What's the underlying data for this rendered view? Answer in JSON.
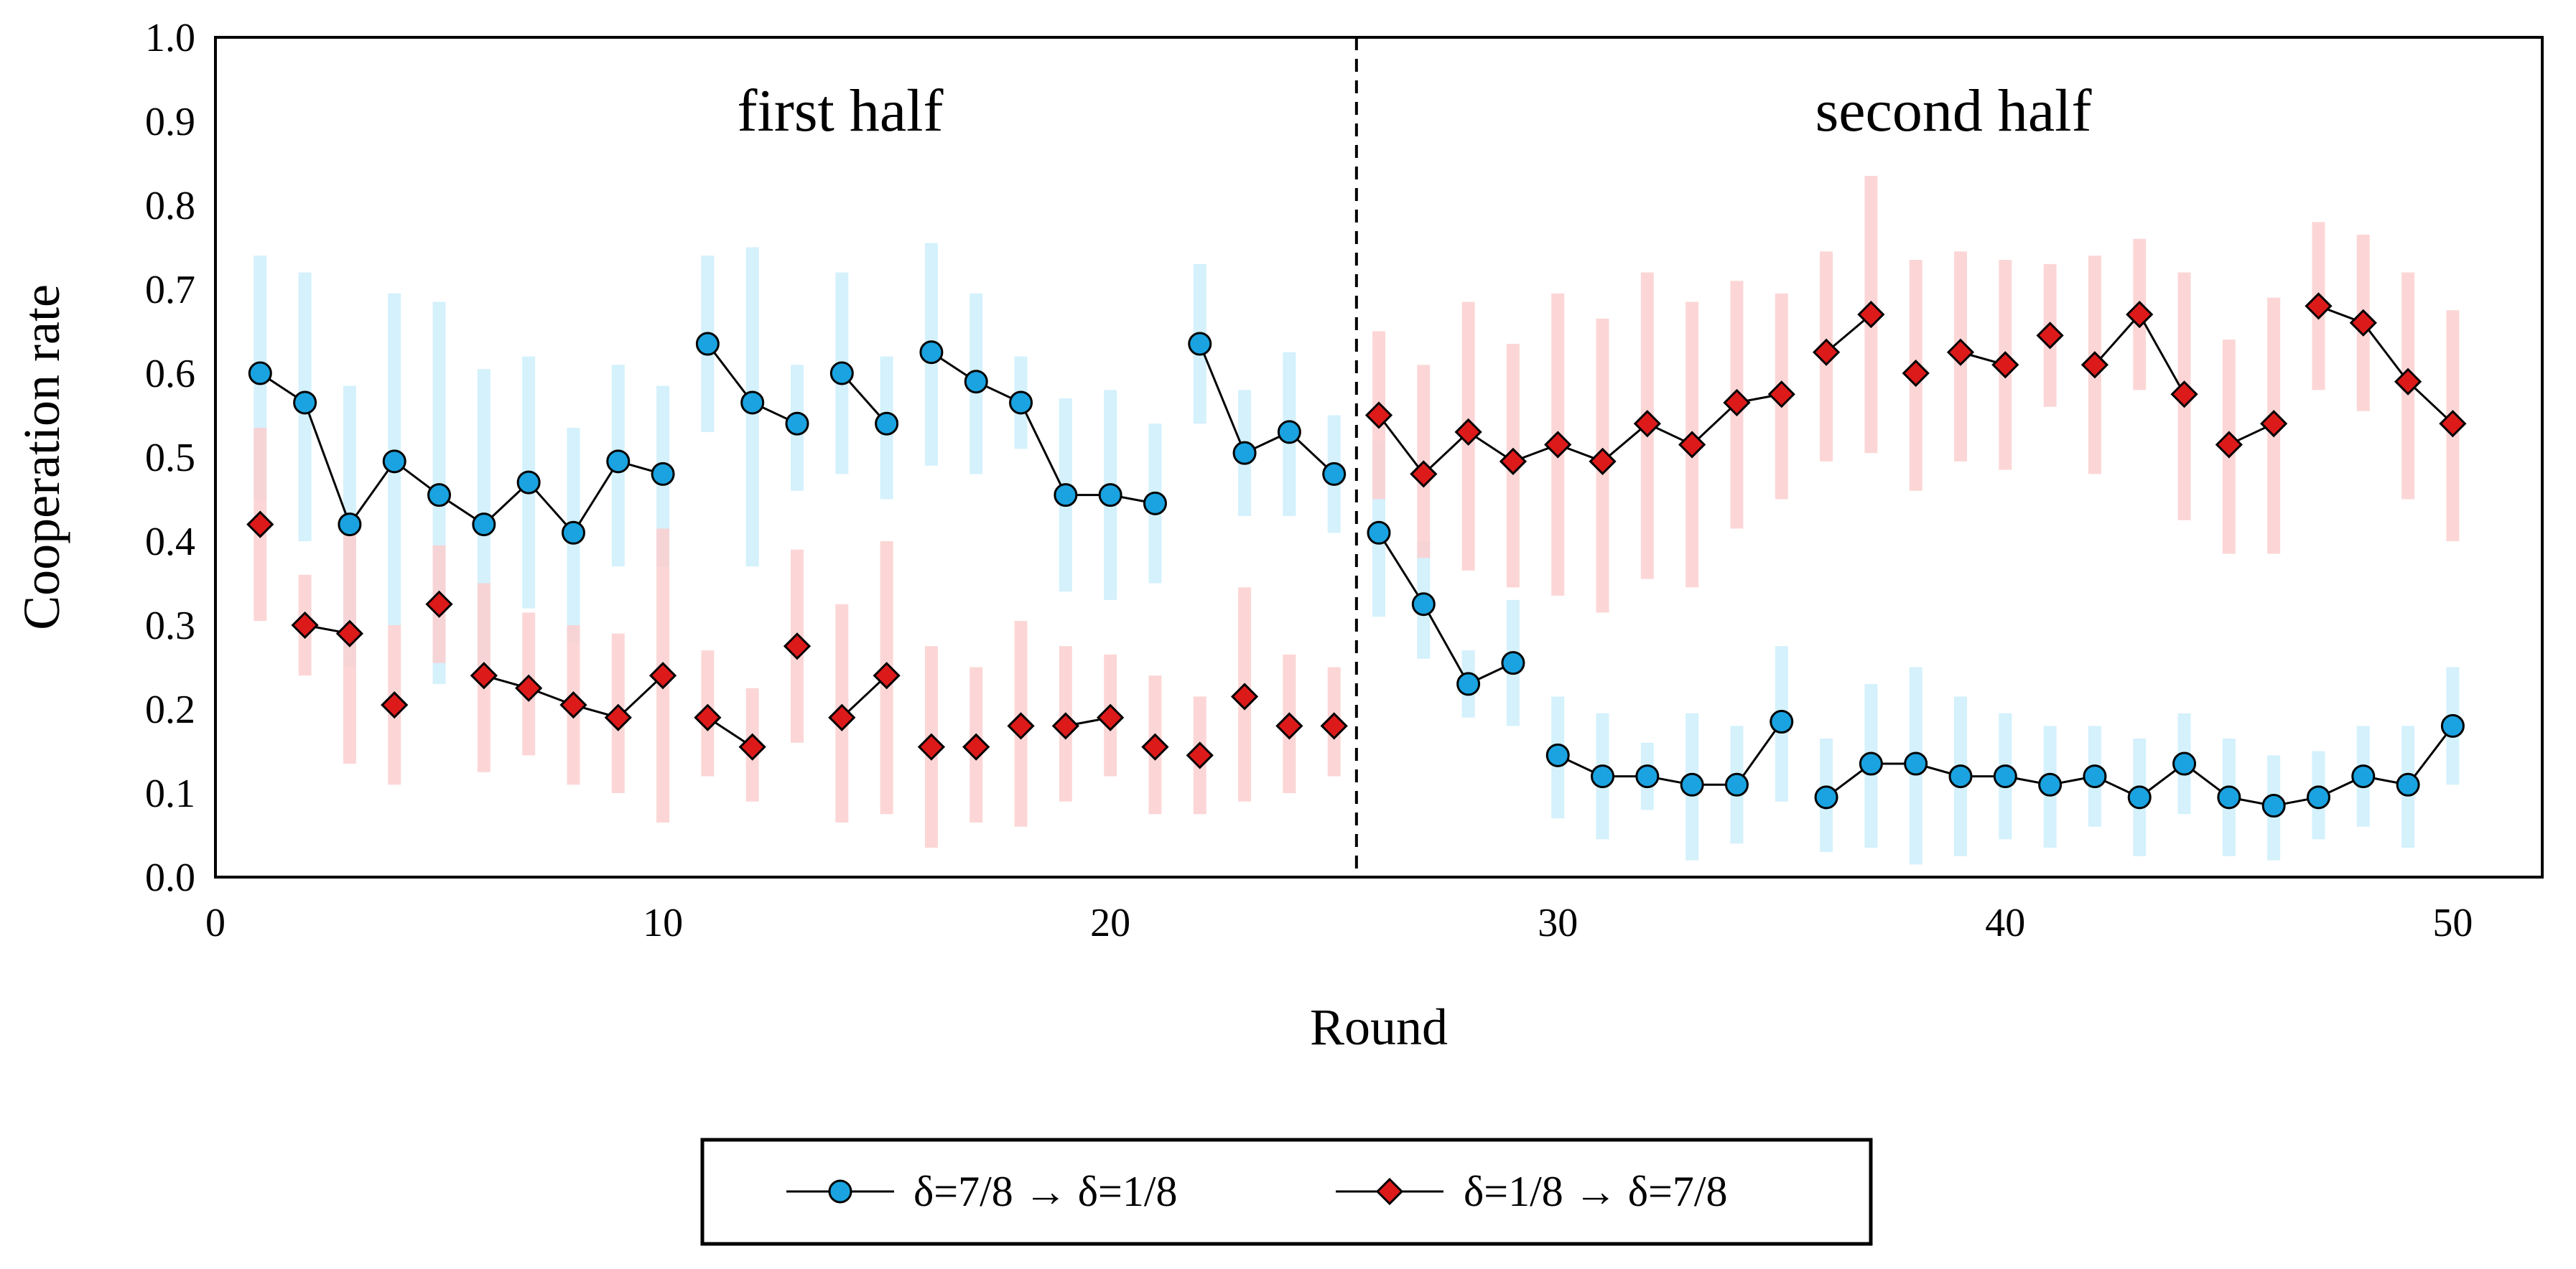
{
  "chart_data": {
    "type": "line",
    "title": "",
    "xlabel": "Round",
    "ylabel": "Cooperation rate",
    "xlim": [
      0,
      52
    ],
    "ylim": [
      0.0,
      1.0
    ],
    "xticks": [
      "0",
      "10",
      "20",
      "30",
      "40",
      "50"
    ],
    "yticks": [
      "0.0",
      "0.1",
      "0.2",
      "0.3",
      "0.4",
      "0.5",
      "0.6",
      "0.7",
      "0.8",
      "0.9",
      "1.0"
    ],
    "grid": false,
    "annotations": {
      "first_half": "first half",
      "second_half": "second half",
      "divider_at_round": 25.5
    },
    "legend_position": "bottom-center",
    "series": [
      {
        "name": "δ=7/8 → δ=1/8",
        "marker": "circle",
        "color": "#1aa3e0",
        "errorbar_color": "#cdeefb",
        "segments": [
          [
            1,
            10
          ],
          [
            11,
            13
          ],
          [
            14,
            15
          ],
          [
            16,
            21
          ],
          [
            22,
            25
          ],
          [
            26,
            29
          ],
          [
            30,
            35
          ],
          [
            36,
            50
          ]
        ],
        "x": [
          1,
          2,
          3,
          4,
          5,
          6,
          7,
          8,
          9,
          10,
          11,
          12,
          13,
          14,
          15,
          16,
          17,
          18,
          19,
          20,
          21,
          22,
          23,
          24,
          25,
          26,
          27,
          28,
          29,
          30,
          31,
          32,
          33,
          34,
          35,
          36,
          37,
          38,
          39,
          40,
          41,
          42,
          43,
          44,
          45,
          46,
          47,
          48,
          49,
          50
        ],
        "values": [
          0.6,
          0.565,
          0.42,
          0.495,
          0.455,
          0.42,
          0.47,
          0.41,
          0.495,
          0.48,
          0.635,
          0.565,
          0.54,
          0.6,
          0.54,
          0.625,
          0.59,
          0.565,
          0.455,
          0.455,
          0.445,
          0.635,
          0.505,
          0.53,
          0.48,
          0.41,
          0.325,
          0.23,
          0.255,
          0.145,
          0.12,
          0.12,
          0.11,
          0.11,
          0.185,
          0.095,
          0.135,
          0.135,
          0.12,
          0.12,
          0.11,
          0.12,
          0.095,
          0.135,
          0.095,
          0.085,
          0.095,
          0.12,
          0.11,
          0.18
        ],
        "err_low": [
          0.45,
          0.4,
          0.25,
          0.3,
          0.23,
          0.24,
          0.32,
          0.28,
          0.37,
          0.37,
          0.53,
          0.37,
          0.46,
          0.48,
          0.45,
          0.49,
          0.48,
          0.51,
          0.34,
          0.33,
          0.35,
          0.54,
          0.43,
          0.43,
          0.41,
          0.31,
          0.26,
          0.19,
          0.18,
          0.07,
          0.045,
          0.08,
          0.02,
          0.04,
          0.09,
          0.03,
          0.035,
          0.015,
          0.025,
          0.045,
          0.035,
          0.06,
          0.025,
          0.075,
          0.025,
          0.02,
          0.045,
          0.06,
          0.035,
          0.11
        ],
        "err_high": [
          0.74,
          0.72,
          0.585,
          0.695,
          0.685,
          0.605,
          0.62,
          0.535,
          0.61,
          0.585,
          0.74,
          0.75,
          0.61,
          0.72,
          0.62,
          0.755,
          0.695,
          0.62,
          0.57,
          0.58,
          0.54,
          0.73,
          0.58,
          0.625,
          0.55,
          0.52,
          0.4,
          0.27,
          0.33,
          0.215,
          0.195,
          0.16,
          0.195,
          0.18,
          0.275,
          0.165,
          0.23,
          0.25,
          0.215,
          0.195,
          0.18,
          0.18,
          0.165,
          0.195,
          0.165,
          0.145,
          0.15,
          0.18,
          0.18,
          0.25
        ]
      },
      {
        "name": "δ=1/8 → δ=7/8",
        "marker": "diamond",
        "color": "#dd1a1a",
        "errorbar_color": "#fbcfcf",
        "segments": [
          [
            1,
            1
          ],
          [
            2,
            3
          ],
          [
            4,
            4
          ],
          [
            5,
            5
          ],
          [
            6,
            10
          ],
          [
            11,
            12
          ],
          [
            13,
            13
          ],
          [
            14,
            15
          ],
          [
            16,
            16
          ],
          [
            17,
            17
          ],
          [
            18,
            18
          ],
          [
            19,
            20
          ],
          [
            21,
            21
          ],
          [
            22,
            22
          ],
          [
            23,
            23
          ],
          [
            24,
            24
          ],
          [
            25,
            25
          ],
          [
            26,
            35
          ],
          [
            36,
            37
          ],
          [
            38,
            38
          ],
          [
            39,
            40
          ],
          [
            41,
            41
          ],
          [
            42,
            44
          ],
          [
            45,
            46
          ],
          [
            47,
            50
          ]
        ],
        "x": [
          1,
          2,
          3,
          4,
          5,
          6,
          7,
          8,
          9,
          10,
          11,
          12,
          13,
          14,
          15,
          16,
          17,
          18,
          19,
          20,
          21,
          22,
          23,
          24,
          25,
          26,
          27,
          28,
          29,
          30,
          31,
          32,
          33,
          34,
          35,
          36,
          37,
          38,
          39,
          40,
          41,
          42,
          43,
          44,
          45,
          46,
          47,
          48,
          49,
          50
        ],
        "values": [
          0.42,
          0.3,
          0.29,
          0.205,
          0.325,
          0.24,
          0.225,
          0.205,
          0.19,
          0.24,
          0.19,
          0.155,
          0.275,
          0.19,
          0.24,
          0.155,
          0.155,
          0.18,
          0.18,
          0.19,
          0.155,
          0.145,
          0.215,
          0.18,
          0.18,
          0.55,
          0.48,
          0.53,
          0.495,
          0.515,
          0.495,
          0.54,
          0.515,
          0.565,
          0.575,
          0.625,
          0.67,
          0.6,
          0.625,
          0.61,
          0.645,
          0.61,
          0.67,
          0.575,
          0.515,
          0.54,
          0.68,
          0.66,
          0.59,
          0.54
        ],
        "err_low": [
          0.305,
          0.24,
          0.135,
          0.11,
          0.255,
          0.125,
          0.145,
          0.11,
          0.1,
          0.065,
          0.12,
          0.09,
          0.16,
          0.065,
          0.075,
          0.035,
          0.065,
          0.06,
          0.09,
          0.12,
          0.075,
          0.075,
          0.09,
          0.1,
          0.12,
          0.45,
          0.38,
          0.365,
          0.345,
          0.335,
          0.315,
          0.355,
          0.345,
          0.415,
          0.45,
          0.495,
          0.505,
          0.46,
          0.495,
          0.485,
          0.56,
          0.48,
          0.58,
          0.425,
          0.385,
          0.385,
          0.58,
          0.555,
          0.45,
          0.4
        ],
        "err_high": [
          0.535,
          0.36,
          0.42,
          0.3,
          0.395,
          0.35,
          0.315,
          0.3,
          0.29,
          0.415,
          0.27,
          0.225,
          0.39,
          0.325,
          0.4,
          0.275,
          0.25,
          0.305,
          0.275,
          0.265,
          0.24,
          0.215,
          0.345,
          0.265,
          0.25,
          0.65,
          0.61,
          0.685,
          0.635,
          0.695,
          0.665,
          0.72,
          0.685,
          0.71,
          0.695,
          0.745,
          0.835,
          0.735,
          0.745,
          0.735,
          0.73,
          0.74,
          0.76,
          0.72,
          0.64,
          0.69,
          0.78,
          0.765,
          0.72,
          0.675
        ]
      }
    ]
  }
}
